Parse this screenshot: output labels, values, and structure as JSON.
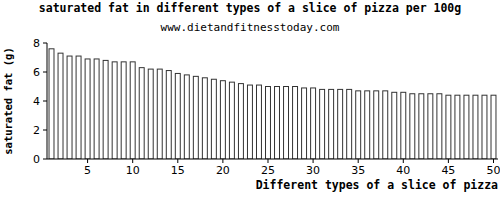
{
  "chart_data": {
    "type": "bar",
    "title": "saturated fat in different types of a slice of pizza per 100g",
    "subtitle": "www.dietandfitnesstoday.com",
    "x_label": "Different types of a slice of pizza",
    "y_label": "saturated fat (g)",
    "categories": [
      null,
      null,
      null,
      null,
      "5",
      null,
      null,
      null,
      null,
      "10",
      null,
      null,
      null,
      null,
      "15",
      null,
      null,
      null,
      null,
      "20",
      null,
      null,
      null,
      null,
      "25",
      null,
      null,
      null,
      null,
      "30",
      null,
      null,
      null,
      null,
      "35",
      null,
      null,
      null,
      null,
      "40",
      null,
      null,
      null,
      null,
      "45",
      null,
      null,
      null,
      null,
      "50"
    ],
    "values": [
      7.6,
      7.3,
      7.1,
      7.1,
      6.9,
      6.9,
      6.8,
      6.7,
      6.7,
      6.7,
      6.3,
      6.2,
      6.2,
      6.1,
      5.9,
      5.8,
      5.7,
      5.6,
      5.5,
      5.4,
      5.3,
      5.2,
      5.1,
      5.1,
      5.0,
      5.0,
      5.0,
      5.0,
      4.9,
      4.9,
      4.8,
      4.8,
      4.8,
      4.8,
      4.7,
      4.7,
      4.7,
      4.7,
      4.6,
      4.6,
      4.5,
      4.5,
      4.5,
      4.5,
      4.4,
      4.4,
      4.4,
      4.4,
      4.4,
      4.4
    ],
    "color": "#333333",
    "ylim": [
      0,
      8
    ],
    "yticks": [
      0,
      2,
      4,
      6,
      8
    ],
    "grid": false
  }
}
